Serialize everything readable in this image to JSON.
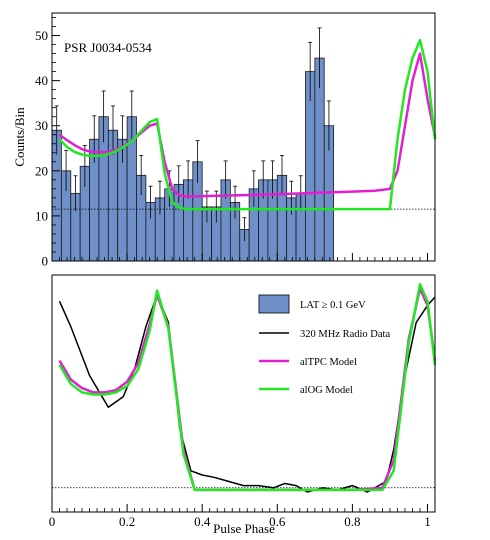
{
  "chart_data": [
    {
      "type": "bar",
      "panel": "top",
      "title": "PSR J0034-0534",
      "ylabel": "Counts/Bin",
      "xlabel": "",
      "xlim": [
        0,
        1.02
      ],
      "ylim": [
        0,
        55
      ],
      "yticks": [
        0,
        10,
        20,
        30,
        40,
        50
      ],
      "xticks": [
        0,
        0.2,
        0.4,
        0.6,
        0.8,
        1
      ],
      "bin_width": 0.025,
      "bin_values": [
        29,
        20,
        15,
        21,
        27,
        32,
        29,
        27,
        32,
        19,
        13,
        14,
        16,
        17,
        18,
        22,
        12,
        12,
        18,
        13,
        7,
        16,
        18,
        18,
        19,
        14,
        15,
        42,
        45,
        30
      ],
      "errors": [
        5.4,
        4.5,
        3.9,
        4.6,
        5.2,
        5.7,
        5.4,
        5.2,
        5.7,
        4.4,
        3.6,
        3.7,
        4.0,
        4.1,
        4.2,
        4.7,
        3.5,
        3.5,
        4.2,
        3.6,
        2.6,
        4.0,
        4.2,
        4.2,
        4.4,
        3.7,
        3.9,
        6.5,
        6.7,
        5.5
      ],
      "background_level": 11.5,
      "series": [
        {
          "name": "alTPC Model",
          "color": "#e020d0",
          "x": [
            0.02,
            0.04,
            0.06,
            0.08,
            0.1,
            0.12,
            0.14,
            0.16,
            0.18,
            0.2,
            0.22,
            0.24,
            0.26,
            0.28,
            0.3,
            0.32,
            0.34,
            0.36,
            0.4,
            0.5,
            0.6,
            0.7,
            0.8,
            0.86,
            0.9,
            0.92,
            0.94,
            0.96,
            0.98,
            1.0,
            1.02
          ],
          "y": [
            28,
            26.8,
            25.7,
            24.8,
            24.3,
            24.1,
            24.1,
            24.4,
            25.0,
            26.0,
            27.2,
            28.6,
            30.0,
            30.5,
            22.0,
            16.0,
            14.5,
            14.3,
            14.4,
            14.6,
            14.8,
            15.1,
            15.4,
            15.6,
            16.0,
            20.0,
            30.0,
            40.0,
            46.0,
            36.0,
            27.5
          ]
        },
        {
          "name": "alOG Model",
          "color": "#22e822",
          "x": [
            0.02,
            0.04,
            0.06,
            0.08,
            0.1,
            0.12,
            0.14,
            0.16,
            0.18,
            0.2,
            0.22,
            0.24,
            0.26,
            0.28,
            0.3,
            0.32,
            0.34,
            0.36,
            0.38,
            0.4,
            0.5,
            0.6,
            0.7,
            0.8,
            0.9,
            0.92,
            0.94,
            0.96,
            0.98,
            1.0,
            1.02
          ],
          "y": [
            27,
            25.3,
            24.2,
            23.6,
            23.3,
            23.3,
            23.5,
            24.0,
            24.8,
            25.8,
            27.2,
            29.0,
            30.8,
            31.5,
            19.5,
            13.0,
            11.8,
            11.5,
            11.5,
            11.5,
            11.5,
            11.5,
            11.5,
            11.5,
            11.5,
            27.0,
            38.0,
            45.0,
            49.0,
            42.0,
            27.0
          ]
        }
      ]
    },
    {
      "type": "line",
      "panel": "bottom",
      "xlabel": "Pulse Phase",
      "ylabel": "",
      "xlim": [
        0,
        1.02
      ],
      "ylim": [
        0,
        1.1
      ],
      "xticks": [
        0,
        0.2,
        0.4,
        0.6,
        0.8,
        1
      ],
      "xtick_labels": [
        "0",
        "0.2",
        "0.4",
        "0.6",
        "0.8",
        "1"
      ],
      "baseline_level": 0.02,
      "legend": {
        "placement": "top-right",
        "entries": [
          {
            "label": "LAT ≥ 0.1 GeV",
            "kind": "box",
            "color": "#6e8fc8"
          },
          {
            "label": "320 MHz Radio Data",
            "kind": "line",
            "color": "#000000"
          },
          {
            "label": "alTPC Model",
            "kind": "line",
            "color": "#e020d0"
          },
          {
            "label": "alOG Model",
            "kind": "line",
            "color": "#22e822"
          }
        ]
      },
      "series": [
        {
          "name": "320 MHz Radio Data",
          "color": "#000000",
          "x": [
            0.02,
            0.05,
            0.1,
            0.15,
            0.19,
            0.22,
            0.25,
            0.28,
            0.31,
            0.34,
            0.37,
            0.4,
            0.43,
            0.47,
            0.51,
            0.55,
            0.59,
            0.62,
            0.65,
            0.68,
            0.72,
            0.76,
            0.8,
            0.84,
            0.87,
            0.89,
            0.91,
            0.94,
            0.97,
            1.0,
            1.02
          ],
          "y": [
            0.9,
            0.78,
            0.55,
            0.4,
            0.45,
            0.58,
            0.78,
            0.93,
            0.8,
            0.3,
            0.1,
            0.08,
            0.07,
            0.05,
            0.03,
            0.03,
            0.02,
            0.04,
            0.03,
            0.0,
            0.02,
            0.01,
            0.03,
            0.0,
            0.03,
            0.05,
            0.2,
            0.55,
            0.8,
            0.88,
            0.92
          ]
        },
        {
          "name": "alTPC Model",
          "color": "#e020d0",
          "x": [
            0.02,
            0.05,
            0.08,
            0.11,
            0.14,
            0.17,
            0.2,
            0.23,
            0.26,
            0.28,
            0.31,
            0.35,
            0.38,
            0.4,
            0.5,
            0.6,
            0.7,
            0.8,
            0.88,
            0.91,
            0.95,
            0.98,
            1.0,
            1.02
          ],
          "y": [
            0.62,
            0.53,
            0.49,
            0.47,
            0.47,
            0.48,
            0.52,
            0.61,
            0.79,
            0.93,
            0.78,
            0.2,
            0.01,
            0.01,
            0.01,
            0.01,
            0.01,
            0.01,
            0.02,
            0.15,
            0.72,
            0.96,
            0.88,
            0.62
          ]
        },
        {
          "name": "alOG Model",
          "color": "#22e822",
          "x": [
            0.02,
            0.05,
            0.08,
            0.11,
            0.14,
            0.17,
            0.2,
            0.23,
            0.26,
            0.28,
            0.31,
            0.35,
            0.38,
            0.4,
            0.5,
            0.6,
            0.7,
            0.8,
            0.88,
            0.91,
            0.95,
            0.98,
            1.0,
            1.02
          ],
          "y": [
            0.6,
            0.51,
            0.47,
            0.46,
            0.46,
            0.47,
            0.5,
            0.58,
            0.76,
            0.95,
            0.77,
            0.18,
            0.01,
            0.01,
            0.01,
            0.01,
            0.01,
            0.01,
            0.01,
            0.1,
            0.7,
            0.98,
            0.9,
            0.6
          ]
        }
      ]
    }
  ]
}
